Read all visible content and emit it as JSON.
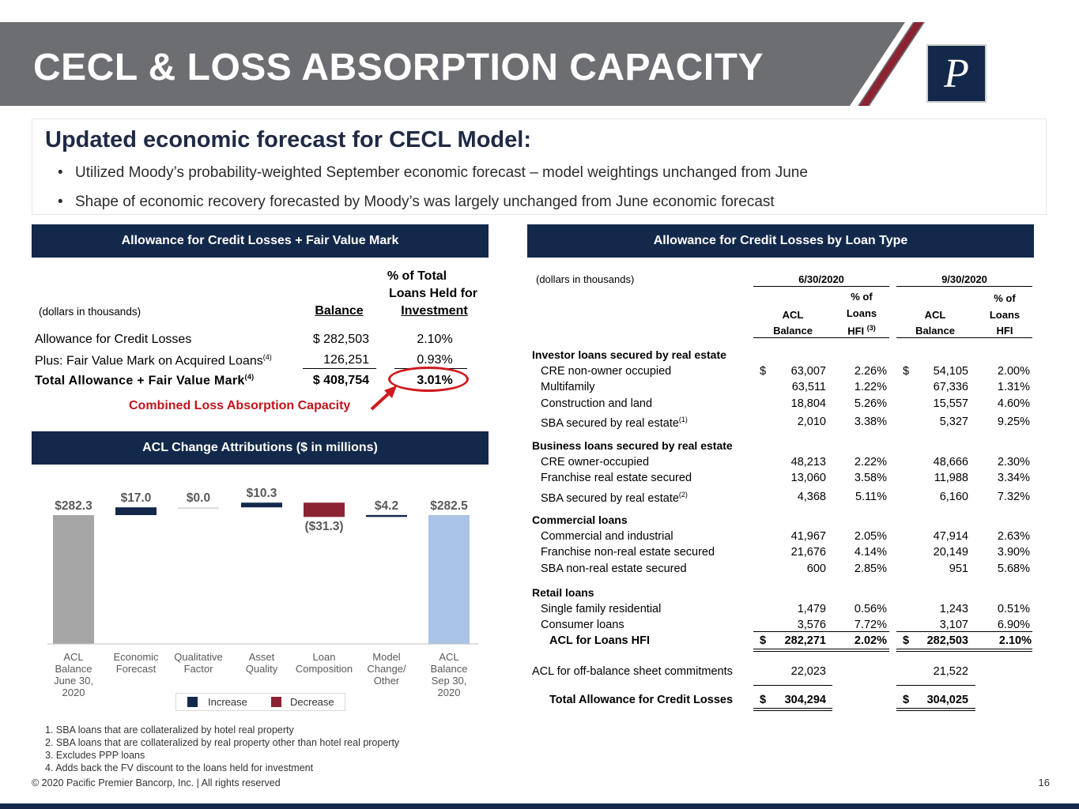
{
  "header": {
    "title": "CECL & LOSS ABSORPTION CAPACITY"
  },
  "intro": {
    "heading": "Updated economic forecast for CECL Model:",
    "bullets": [
      "Utilized Moody’s probability-weighted September economic forecast – model weightings unchanged from June",
      "Shape of economic recovery forecasted by Moody’s was largely unchanged from June economic forecast"
    ],
    "bullet_glyph": "•"
  },
  "left_panel": {
    "title": "Allowance for Credit Losses + Fair Value Mark",
    "units": "(dollars in thousands)",
    "col_balance": "Balance",
    "col_pct_line1": "% of Total",
    "col_pct_line2": "Loans Held for",
    "col_pct_line3": "Investment",
    "rows": [
      {
        "label": "Allowance for Credit Losses",
        "sup": "",
        "balance": "$ 282,503",
        "pct": "2.10%"
      },
      {
        "label": "Plus: Fair Value Mark on Acquired Loans",
        "sup": "(4)",
        "balance": "126,251",
        "pct": "0.93%"
      },
      {
        "label": "Total Allowance + Fair Value Mark",
        "sup": "(4)",
        "balance": "$ 408,754",
        "pct": "3.01%"
      }
    ],
    "callout": "Combined Loss Absorption Capacity"
  },
  "waterfall": {
    "title": "ACL Change Attributions ($ in millions)",
    "chart_data": {
      "type": "bar",
      "categories": [
        "ACL Balance June 30, 2020",
        "Economic Forecast",
        "Qualitative Factor",
        "Asset Quality",
        "Loan Composition",
        "Model Change/ Other",
        "ACL Balance Sep 30, 2020"
      ],
      "values": [
        282.3,
        17.0,
        0.0,
        10.3,
        -31.3,
        4.2,
        282.5
      ],
      "value_labels": [
        "$282.3",
        "$17.0",
        "$0.0",
        "$10.3",
        "($31.3)",
        "$4.2",
        "$282.5"
      ],
      "axis_labels": [
        [
          "ACL",
          "Balance",
          "June 30,",
          "2020"
        ],
        [
          "Economic",
          "Forecast"
        ],
        [
          "Qualitative",
          "Factor"
        ],
        [
          "Asset",
          "Quality"
        ],
        [
          "Loan",
          "Composition"
        ],
        [
          "Model",
          "Change/",
          "Other"
        ],
        [
          "ACL",
          "Balance",
          "Sep 30,",
          "2020"
        ]
      ],
      "legend": [
        "Increase",
        "Decrease"
      ],
      "colors": {
        "total": "#a6a6a6",
        "total_end": "#a9c4e6",
        "increase": "#13294b",
        "decrease": "#8b2332"
      }
    }
  },
  "right_panel": {
    "title": "Allowance for Credit Losses by Loan Type",
    "units": "(dollars in thousands)",
    "period1": "6/30/2020",
    "period2": "9/30/2020",
    "col_acl_1": "ACL",
    "col_acl_2": "Balance",
    "col_pct_1": "% of",
    "col_pct_2": "Loans",
    "col_pct_3a": "HFI",
    "col_pct_3b": "HFI",
    "col_pct_sup": "(3)",
    "sections": [
      {
        "heading": "Investor loans secured by real estate",
        "rows": [
          {
            "label": "CRE non-owner occupied",
            "sup": "",
            "d1": "$",
            "a1": "63,007",
            "p1": "2.26%",
            "d2": "$",
            "a2": "54,105",
            "p2": "2.00%"
          },
          {
            "label": "Multifamily",
            "sup": "",
            "d1": "",
            "a1": "63,511",
            "p1": "1.22%",
            "d2": "",
            "a2": "67,336",
            "p2": "1.31%"
          },
          {
            "label": "Construction and land",
            "sup": "",
            "d1": "",
            "a1": "18,804",
            "p1": "5.26%",
            "d2": "",
            "a2": "15,557",
            "p2": "4.60%"
          },
          {
            "label": "SBA secured by real estate",
            "sup": "(1)",
            "d1": "",
            "a1": "2,010",
            "p1": "3.38%",
            "d2": "",
            "a2": "5,327",
            "p2": "9.25%"
          }
        ]
      },
      {
        "heading": "Business loans secured by real estate",
        "rows": [
          {
            "label": "CRE owner-occupied",
            "sup": "",
            "d1": "",
            "a1": "48,213",
            "p1": "2.22%",
            "d2": "",
            "a2": "48,666",
            "p2": "2.30%"
          },
          {
            "label": "Franchise real estate secured",
            "sup": "",
            "d1": "",
            "a1": "13,060",
            "p1": "3.58%",
            "d2": "",
            "a2": "11,988",
            "p2": "3.34%"
          },
          {
            "label": "SBA secured by real estate",
            "sup": "(2)",
            "d1": "",
            "a1": "4,368",
            "p1": "5.11%",
            "d2": "",
            "a2": "6,160",
            "p2": "7.32%"
          }
        ]
      },
      {
        "heading": "Commercial loans",
        "rows": [
          {
            "label": "Commercial and industrial",
            "sup": "",
            "d1": "",
            "a1": "41,967",
            "p1": "2.05%",
            "d2": "",
            "a2": "47,914",
            "p2": "2.63%"
          },
          {
            "label": "Franchise non-real estate secured",
            "sup": "",
            "d1": "",
            "a1": "21,676",
            "p1": "4.14%",
            "d2": "",
            "a2": "20,149",
            "p2": "3.90%"
          },
          {
            "label": "SBA non-real estate secured",
            "sup": "",
            "d1": "",
            "a1": "600",
            "p1": "2.85%",
            "d2": "",
            "a2": "951",
            "p2": "5.68%"
          }
        ]
      },
      {
        "heading": "Retail loans",
        "rows": [
          {
            "label": "Single family residential",
            "sup": "",
            "d1": "",
            "a1": "1,479",
            "p1": "0.56%",
            "d2": "",
            "a2": "1,243",
            "p2": "0.51%"
          },
          {
            "label": "Consumer loans",
            "sup": "",
            "d1": "",
            "a1": "3,576",
            "p1": "7.72%",
            "d2": "",
            "a2": "3,107",
            "p2": "6.90%"
          }
        ]
      }
    ],
    "hfi_total": {
      "label": "ACL for Loans HFI",
      "d1": "$",
      "a1": "282,271",
      "p1": "2.02%",
      "d2": "$",
      "a2": "282,503",
      "p2": "2.10%"
    },
    "offbal": {
      "label": "ACL for off-balance sheet commitments",
      "a1": "22,023",
      "a2": "21,522"
    },
    "grand_total": {
      "label": "Total Allowance for Credit Losses",
      "d1": "$",
      "a1": "304,294",
      "d2": "$",
      "a2": "304,025"
    }
  },
  "footnotes": [
    "1. SBA loans that are collateralized by hotel real property",
    "2. SBA loans that are collateralized by real property other than hotel real property",
    "3. Excludes PPP loans",
    "4. Adds back the FV discount to the loans held for investment"
  ],
  "footer": {
    "copyright": "© 2020 Pacific Premier Bancorp, Inc. | All rights reserved",
    "page": "16"
  }
}
